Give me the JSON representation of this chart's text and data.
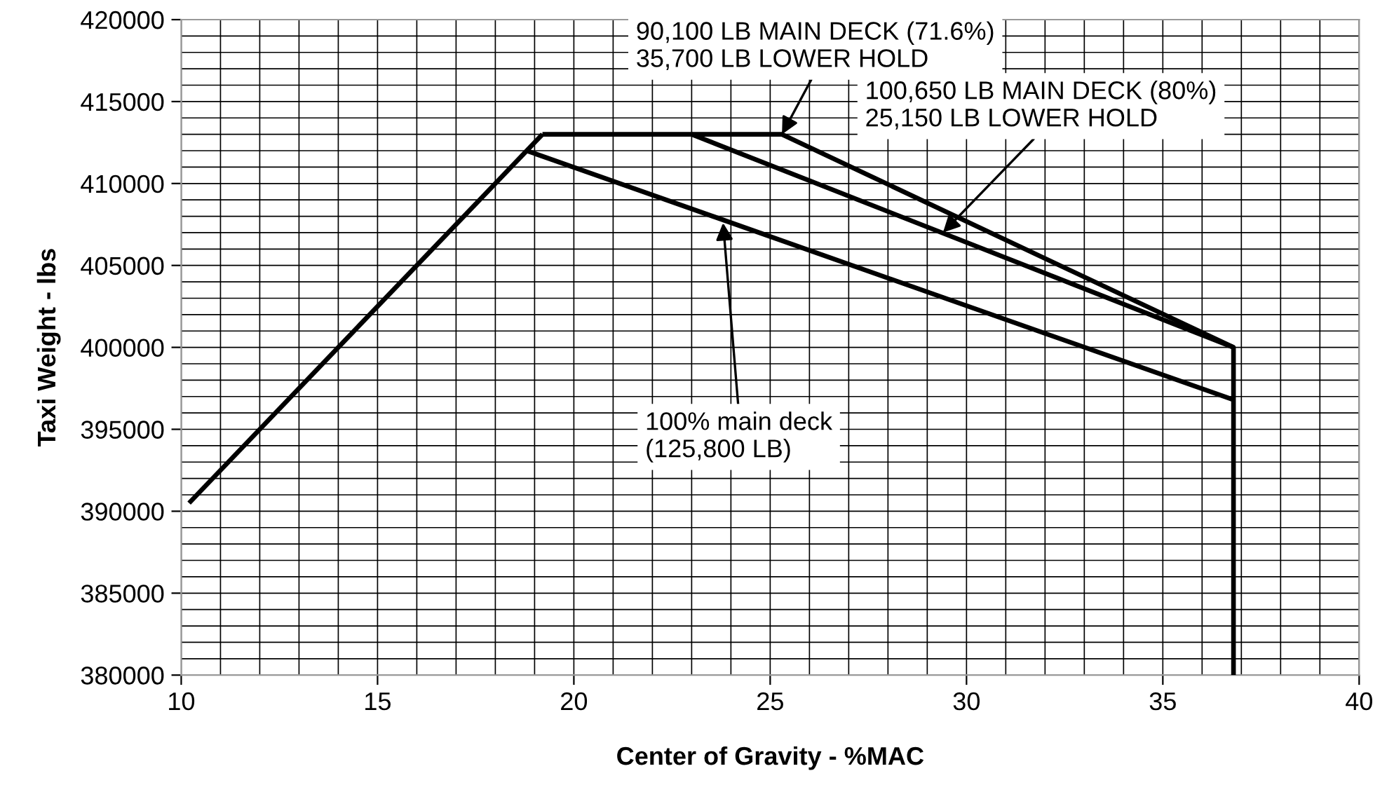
{
  "chart_data": {
    "type": "line",
    "xlabel": "Center of Gravity - %MAC",
    "ylabel": "Taxi Weight - lbs",
    "xlim": [
      10,
      40
    ],
    "xticks": [
      10,
      15,
      20,
      25,
      30,
      35,
      40
    ],
    "ylim": [
      380000,
      420000
    ],
    "yticks": [
      380000,
      385000,
      390000,
      395000,
      400000,
      405000,
      410000,
      415000,
      420000
    ],
    "grid": true,
    "line_style": "solid",
    "marker": "none",
    "series": [
      {
        "color": "#000000",
        "x": [
          10.2,
          19.2
        ],
        "values": [
          390500,
          413000
        ]
      },
      {
        "color": "#000000",
        "x": [
          19.2,
          25.3,
          36.8,
          36.8
        ],
        "values": [
          413000,
          413000,
          400000,
          380000
        ]
      },
      {
        "color": "#000000",
        "x": [
          23.0,
          36.8
        ],
        "values": [
          413000,
          400000
        ]
      },
      {
        "color": "#000000",
        "x": [
          18.8,
          36.8
        ],
        "values": [
          412000,
          396800
        ]
      }
    ],
    "annotations": [
      {
        "text": "90,100 LB MAIN DECK (71.6%)\n35,700 LB LOWER HOLD",
        "x": 25.3,
        "y": 413000
      },
      {
        "text": "100,650 LB MAIN DECK (80%)\n25,150 LB LOWER HOLD",
        "x": 29.4,
        "y": 407000
      },
      {
        "text": "100% main deck\n(125,800 LB)",
        "x": 23.8,
        "y": 407600
      }
    ]
  }
}
